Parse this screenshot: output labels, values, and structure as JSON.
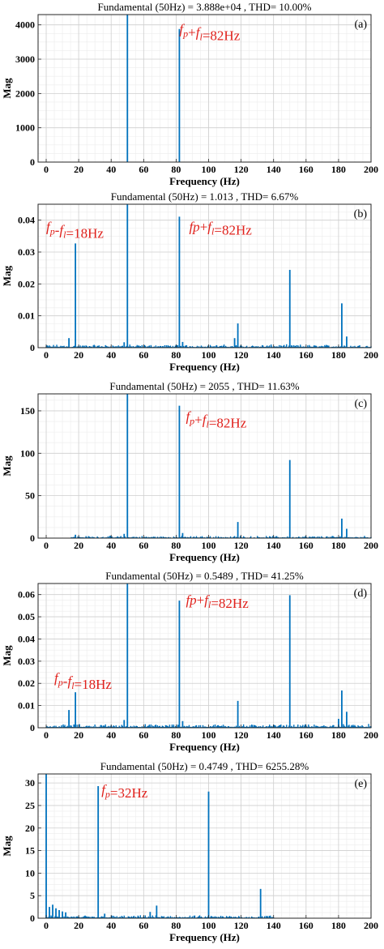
{
  "figure": {
    "panels": [
      {
        "title": "Fundamental (50Hz) = 3.888e+04 , THD= 10.00%",
        "letter": "(a)",
        "annotations": [
          {
            "prefix": "",
            "f1": "f",
            "s1": "p",
            "op": "+",
            "f2": "f",
            "s2": "l",
            "rest": "=82Hz",
            "x": 82,
            "y": 3750
          }
        ]
      },
      {
        "title": "Fundamental (50Hz) = 1.013 , THD= 6.67%",
        "letter": "(b)",
        "annotations": [
          {
            "prefix": "",
            "f1": "f",
            "s1": "p",
            "op": "-",
            "f2": "f",
            "s2": "l",
            "rest": "=18Hz",
            "x": 0,
            "y": 0.0365
          },
          {
            "prefix": "",
            "f1": "fp",
            "s1": "",
            "op": "+",
            "f2": "f",
            "s2": "l",
            "rest": "=82Hz",
            "x": 88,
            "y": 0.0365
          }
        ]
      },
      {
        "title": "Fundamental (50Hz) = 2055 , THD= 11.63%",
        "letter": "(c)",
        "annotations": [
          {
            "prefix": "",
            "f1": "f",
            "s1": "p",
            "op": "+",
            "f2": "f",
            "s2": "l",
            "rest": "=82Hz",
            "x": 86,
            "y": 138
          }
        ]
      },
      {
        "title": "Fundamental (50Hz) = 0.5489 , THD= 41.25%",
        "letter": "(d)",
        "annotations": [
          {
            "prefix": "",
            "f1": "fp",
            "s1": "",
            "op": "+",
            "f2": "f",
            "s2": "l",
            "rest": "=82Hz",
            "x": 86,
            "y": 0.0555
          },
          {
            "prefix": "",
            "f1": "f",
            "s1": "p",
            "op": "-",
            "f2": "f",
            "s2": "l",
            "rest": "=18Hz",
            "x": 5,
            "y": 0.0205
          }
        ]
      },
      {
        "title": "Fundamental (50Hz) = 0.4749 , THD= 6255.28%",
        "letter": "(e)",
        "annotations": [
          {
            "prefix": "",
            "f1": "f",
            "s1": "p",
            "op": "",
            "f2": "",
            "s2": "",
            "rest": "=32Hz",
            "x": 34,
            "y": 27.5
          }
        ]
      }
    ]
  },
  "chart_data": [
    {
      "type": "bar",
      "title": "Fundamental (50Hz) = 3.888e+04 , THD= 10.00%",
      "xlabel": "Frequency (Hz)",
      "ylabel": "Mag",
      "xlim": [
        -5,
        200
      ],
      "ylim": [
        0,
        4300
      ],
      "xticks": [
        0,
        20,
        40,
        60,
        80,
        100,
        120,
        140,
        160,
        180,
        200
      ],
      "yticks": [
        0,
        1000,
        2000,
        3000,
        4000
      ],
      "grid": true,
      "color": "#0072bd",
      "points": [
        [
          50,
          4300
        ],
        [
          82,
          3880
        ]
      ],
      "noise": {
        "amp": 0,
        "from": 0,
        "to": 200
      }
    },
    {
      "type": "bar",
      "title": "Fundamental (50Hz) = 1.013 , THD= 6.67%",
      "xlabel": "Frequency (Hz)",
      "ylabel": "Mag",
      "xlim": [
        -5,
        200
      ],
      "ylim": [
        0,
        0.045
      ],
      "xticks": [
        0,
        20,
        40,
        60,
        80,
        100,
        120,
        140,
        160,
        180,
        200
      ],
      "yticks": [
        0,
        0.01,
        0.02,
        0.03,
        0.04
      ],
      "grid": true,
      "color": "#0072bd",
      "points": [
        [
          18,
          0.0327
        ],
        [
          50,
          0.045
        ],
        [
          82,
          0.0411
        ],
        [
          150,
          0.0244
        ],
        [
          182,
          0.0139
        ],
        [
          118,
          0.0076
        ],
        [
          116,
          0.003
        ],
        [
          14,
          0.003
        ],
        [
          185,
          0.0035
        ],
        [
          84,
          0.0018
        ],
        [
          48,
          0.0017
        ]
      ],
      "noise": {
        "amp": 0.0011,
        "from": 0,
        "to": 200
      }
    },
    {
      "type": "bar",
      "title": "Fundamental (50Hz) = 2055 , THD= 11.63%",
      "xlabel": "Frequency (Hz)",
      "ylabel": "Mag",
      "xlim": [
        -5,
        200
      ],
      "ylim": [
        0,
        170
      ],
      "xticks": [
        0,
        20,
        40,
        60,
        80,
        100,
        120,
        140,
        160,
        180,
        200
      ],
      "yticks": [
        0,
        50,
        100,
        150
      ],
      "grid": true,
      "color": "#0072bd",
      "points": [
        [
          50,
          170
        ],
        [
          82,
          156
        ],
        [
          150,
          92
        ],
        [
          118,
          19
        ],
        [
          182,
          23
        ],
        [
          185,
          11
        ],
        [
          84,
          6
        ],
        [
          48,
          5
        ],
        [
          18,
          4
        ]
      ],
      "noise": {
        "amp": 3,
        "from": 15,
        "to": 200
      }
    },
    {
      "type": "bar",
      "title": "Fundamental (50Hz) = 0.5489 , THD= 41.25%",
      "xlabel": "Frequency (Hz)",
      "ylabel": "Mag",
      "xlim": [
        -5,
        200
      ],
      "ylim": [
        0,
        0.065
      ],
      "xticks": [
        0,
        20,
        40,
        60,
        80,
        100,
        120,
        140,
        160,
        180,
        200
      ],
      "yticks": [
        0,
        0.01,
        0.02,
        0.03,
        0.04,
        0.05,
        0.06
      ],
      "grid": true,
      "color": "#0072bd",
      "points": [
        [
          50,
          0.065
        ],
        [
          82,
          0.0573
        ],
        [
          150,
          0.0597
        ],
        [
          18,
          0.016
        ],
        [
          14,
          0.008
        ],
        [
          118,
          0.0121
        ],
        [
          182,
          0.0168
        ],
        [
          185,
          0.0072
        ],
        [
          180,
          0.004
        ],
        [
          84,
          0.003
        ],
        [
          48,
          0.0035
        ]
      ],
      "noise": {
        "amp": 0.0018,
        "from": 0,
        "to": 200
      }
    },
    {
      "type": "bar",
      "title": "Fundamental (50Hz) = 0.4749 , THD= 6255.28%",
      "xlabel": "Frequency (Hz)",
      "ylabel": "Mag",
      "xlim": [
        -5,
        200
      ],
      "ylim": [
        0,
        32
      ],
      "xticks": [
        0,
        20,
        40,
        60,
        80,
        100,
        120,
        140,
        160,
        180,
        200
      ],
      "yticks": [
        0,
        5,
        10,
        15,
        20,
        25,
        30
      ],
      "grid": true,
      "color": "#0072bd",
      "points": [
        [
          0,
          32
        ],
        [
          32,
          29.3
        ],
        [
          100,
          28.1
        ],
        [
          132,
          6.5
        ],
        [
          68,
          2.8
        ],
        [
          4,
          3.0
        ],
        [
          2,
          2.5
        ],
        [
          6,
          2.2
        ],
        [
          8,
          1.8
        ],
        [
          10,
          1.5
        ],
        [
          12,
          1.3
        ],
        [
          64,
          1.4
        ],
        [
          36,
          1.0
        ]
      ],
      "noise": {
        "amp": 0.7,
        "from": 0,
        "to": 140
      }
    }
  ]
}
